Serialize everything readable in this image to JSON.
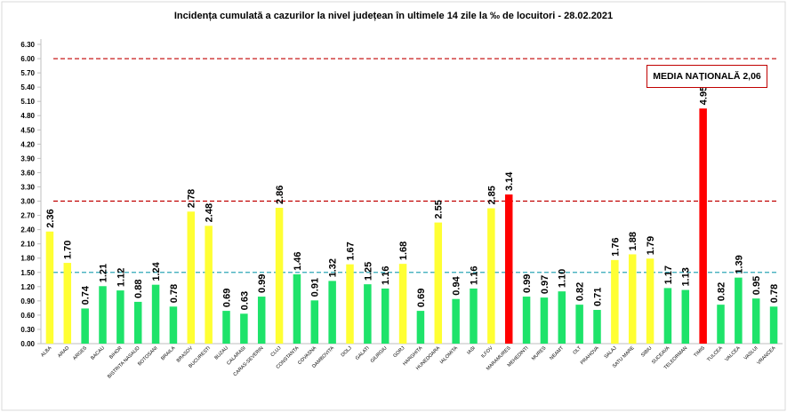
{
  "chart_data": {
    "type": "bar",
    "title": "Incidența cumulată a cazurilor la nivel județean în ultimele 14 zile la ‰ de locuitori - 28.02.2021",
    "annotation": "MEDIA NAȚIONALĂ 2,06",
    "ylim": [
      0,
      6.3
    ],
    "yticks": [
      "0.00",
      "0.30",
      "0.60",
      "0.90",
      "1.20",
      "1.50",
      "1.80",
      "2.10",
      "2.40",
      "2.70",
      "3.00",
      "3.30",
      "3.60",
      "3.90",
      "4.20",
      "4.50",
      "4.80",
      "5.10",
      "5.40",
      "5.70",
      "6.00",
      "6.30"
    ],
    "reference_lines": [
      {
        "value": 6.0,
        "color": "#c00000"
      },
      {
        "value": 3.0,
        "color": "#c00000"
      },
      {
        "value": 1.5,
        "color": "#2ea6b8"
      }
    ],
    "colors": {
      "green": "#1ee36a",
      "yellow": "#ffff33",
      "red": "#ff0000"
    },
    "categories": [
      "ALBA",
      "ARAD",
      "ARGES",
      "BACAU",
      "BIHOR",
      "BISTRITA NASAUD",
      "BOTOSANI",
      "BRAILA",
      "BRASOV",
      "BUCURESTI",
      "BUZAU",
      "CALARASI",
      "CARAS-SEVERIN",
      "CLUJ",
      "CONSTANTA",
      "COVASNA",
      "DAMBOVITA",
      "DOLJ",
      "GALATI",
      "GIURGIU",
      "GORJ",
      "HARGHITA",
      "HUNEDOARA",
      "IALOMITA",
      "IASI",
      "ILFOV",
      "MARAMURES",
      "MEHEDINTI",
      "MURES",
      "NEAMT",
      "OLT",
      "PRAHOVA",
      "SALAJ",
      "SATU MARE",
      "SIBIU",
      "SUCEAVA",
      "TELEORMAN",
      "TIMIS",
      "TULCEA",
      "VALCEA",
      "VASLUI",
      "VRANCEA"
    ],
    "values": [
      2.36,
      1.7,
      0.74,
      1.21,
      1.12,
      0.88,
      1.24,
      0.78,
      2.78,
      2.48,
      0.69,
      0.63,
      0.99,
      2.86,
      1.46,
      0.91,
      1.32,
      1.67,
      1.25,
      1.16,
      1.68,
      0.69,
      2.55,
      0.94,
      1.16,
      2.85,
      3.14,
      0.99,
      0.97,
      1.1,
      0.82,
      0.71,
      1.76,
      1.88,
      1.79,
      1.17,
      1.13,
      4.95,
      0.82,
      1.39,
      0.95,
      0.78
    ],
    "labels": [
      "2.36",
      "1.70",
      "0.74",
      "1.21",
      "1.12",
      "0.88",
      "1.24",
      "0.78",
      "2.78",
      "2.48",
      "0.69",
      "0.63",
      "0.99",
      "2.86",
      "1.46",
      "0.91",
      "1.32",
      "1.67",
      "1.25",
      "1.16",
      "1.68",
      "0.69",
      "2.55",
      "0.94",
      "1.16",
      "2.85",
      "3.14",
      "0.99",
      "0.97",
      "1.10",
      "0.82",
      "0.71",
      "1.76",
      "1.88",
      "1.79",
      "1.17",
      "1.13",
      "4.95",
      "0.82",
      "1.39",
      "0.95",
      "0.78"
    ],
    "bar_colors": [
      "yellow",
      "yellow",
      "green",
      "green",
      "green",
      "green",
      "green",
      "green",
      "yellow",
      "yellow",
      "green",
      "green",
      "green",
      "yellow",
      "green",
      "green",
      "green",
      "yellow",
      "green",
      "green",
      "yellow",
      "green",
      "yellow",
      "green",
      "green",
      "yellow",
      "red",
      "green",
      "green",
      "green",
      "green",
      "green",
      "yellow",
      "yellow",
      "yellow",
      "green",
      "green",
      "red",
      "green",
      "green",
      "green",
      "green"
    ]
  }
}
